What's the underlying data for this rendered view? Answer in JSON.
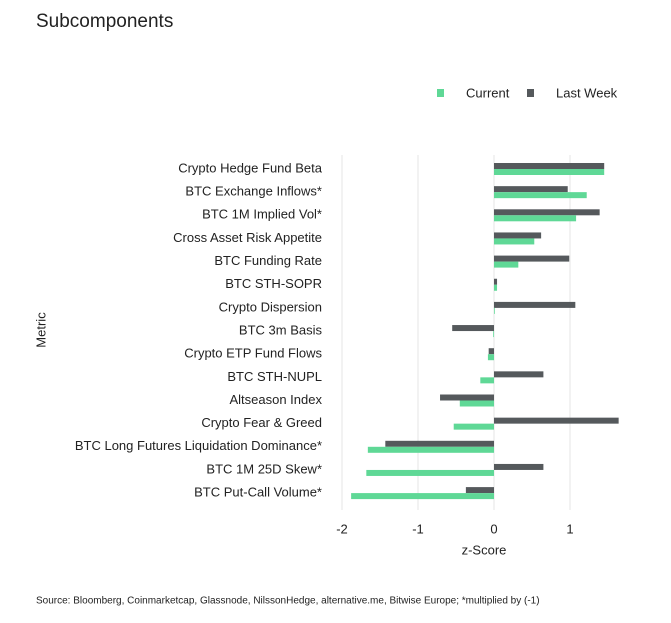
{
  "chart_data": {
    "type": "barh",
    "title": "Subcomponents",
    "y_label": "Metric",
    "x_label": "z-Score",
    "source": "Source: Bloomberg, Coinmarketcap, Glassnode, NilssonHedge, alternative.me, Bitwise Europe; *multiplied by (-1)",
    "categories": [
      "Crypto Hedge Fund Beta",
      "BTC Exchange Inflows*",
      "BTC 1M Implied Vol*",
      "Cross Asset Risk Appetite",
      "BTC Funding Rate",
      "BTC STH-SOPR",
      "Crypto Dispersion",
      "BTC 3m Basis",
      "Crypto ETP Fund Flows",
      "BTC STH-NUPL",
      "Altseason Index",
      "Crypto Fear & Greed",
      "BTC Long Futures Liquidation Dominance*",
      "BTC 1M 25D Skew*",
      "BTC Put-Call Volume*"
    ],
    "series": [
      {
        "name": "Current",
        "color": "#5fd896",
        "values": [
          1.45,
          1.22,
          1.08,
          0.53,
          0.32,
          0.04,
          0.01,
          -0.01,
          -0.08,
          -0.18,
          -0.45,
          -0.53,
          -1.66,
          -1.68,
          -1.88
        ]
      },
      {
        "name": "Last Week",
        "color": "#55595c",
        "values": [
          1.45,
          0.97,
          1.39,
          0.62,
          0.99,
          0.04,
          1.07,
          -0.55,
          -0.07,
          0.65,
          -0.71,
          1.64,
          -1.43,
          0.65,
          -0.37
        ]
      }
    ],
    "xlim": [
      -2,
      1.72
    ],
    "xticks": [
      -2,
      -1,
      0,
      1
    ],
    "grid": true
  }
}
